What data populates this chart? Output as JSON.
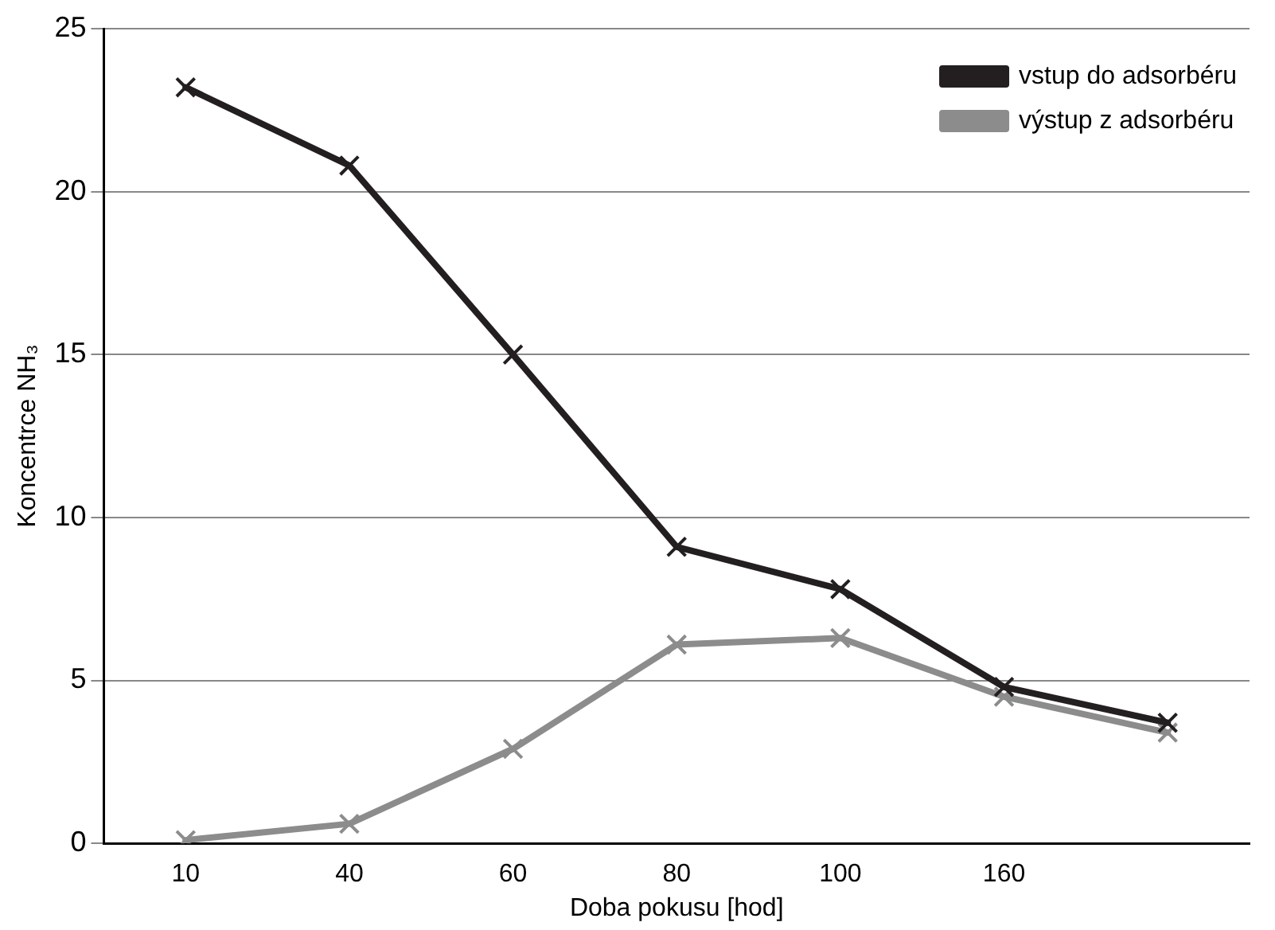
{
  "chart_data": {
    "type": "line",
    "xlabel": "Doba pokusu [hod]",
    "ylabel": "Koncentrce NH₃",
    "categories": [
      "10",
      "40",
      "60",
      "80",
      "100",
      "160",
      null
    ],
    "series": [
      {
        "name": "vstup do adsorbéru",
        "color": "#231f20",
        "values": [
          23.2,
          20.8,
          15.0,
          9.1,
          7.8,
          4.8,
          3.7
        ]
      },
      {
        "name": "výstup z adsorbéru",
        "color": "#8c8c8c",
        "values": [
          0.1,
          0.6,
          2.9,
          6.1,
          6.3,
          4.5,
          3.4
        ]
      }
    ],
    "ylim": [
      0,
      25
    ],
    "yticks": [
      0,
      5,
      10,
      15,
      20,
      25
    ],
    "grid": "y",
    "legend": "top right",
    "marker": "cross",
    "line_style": "solid"
  }
}
